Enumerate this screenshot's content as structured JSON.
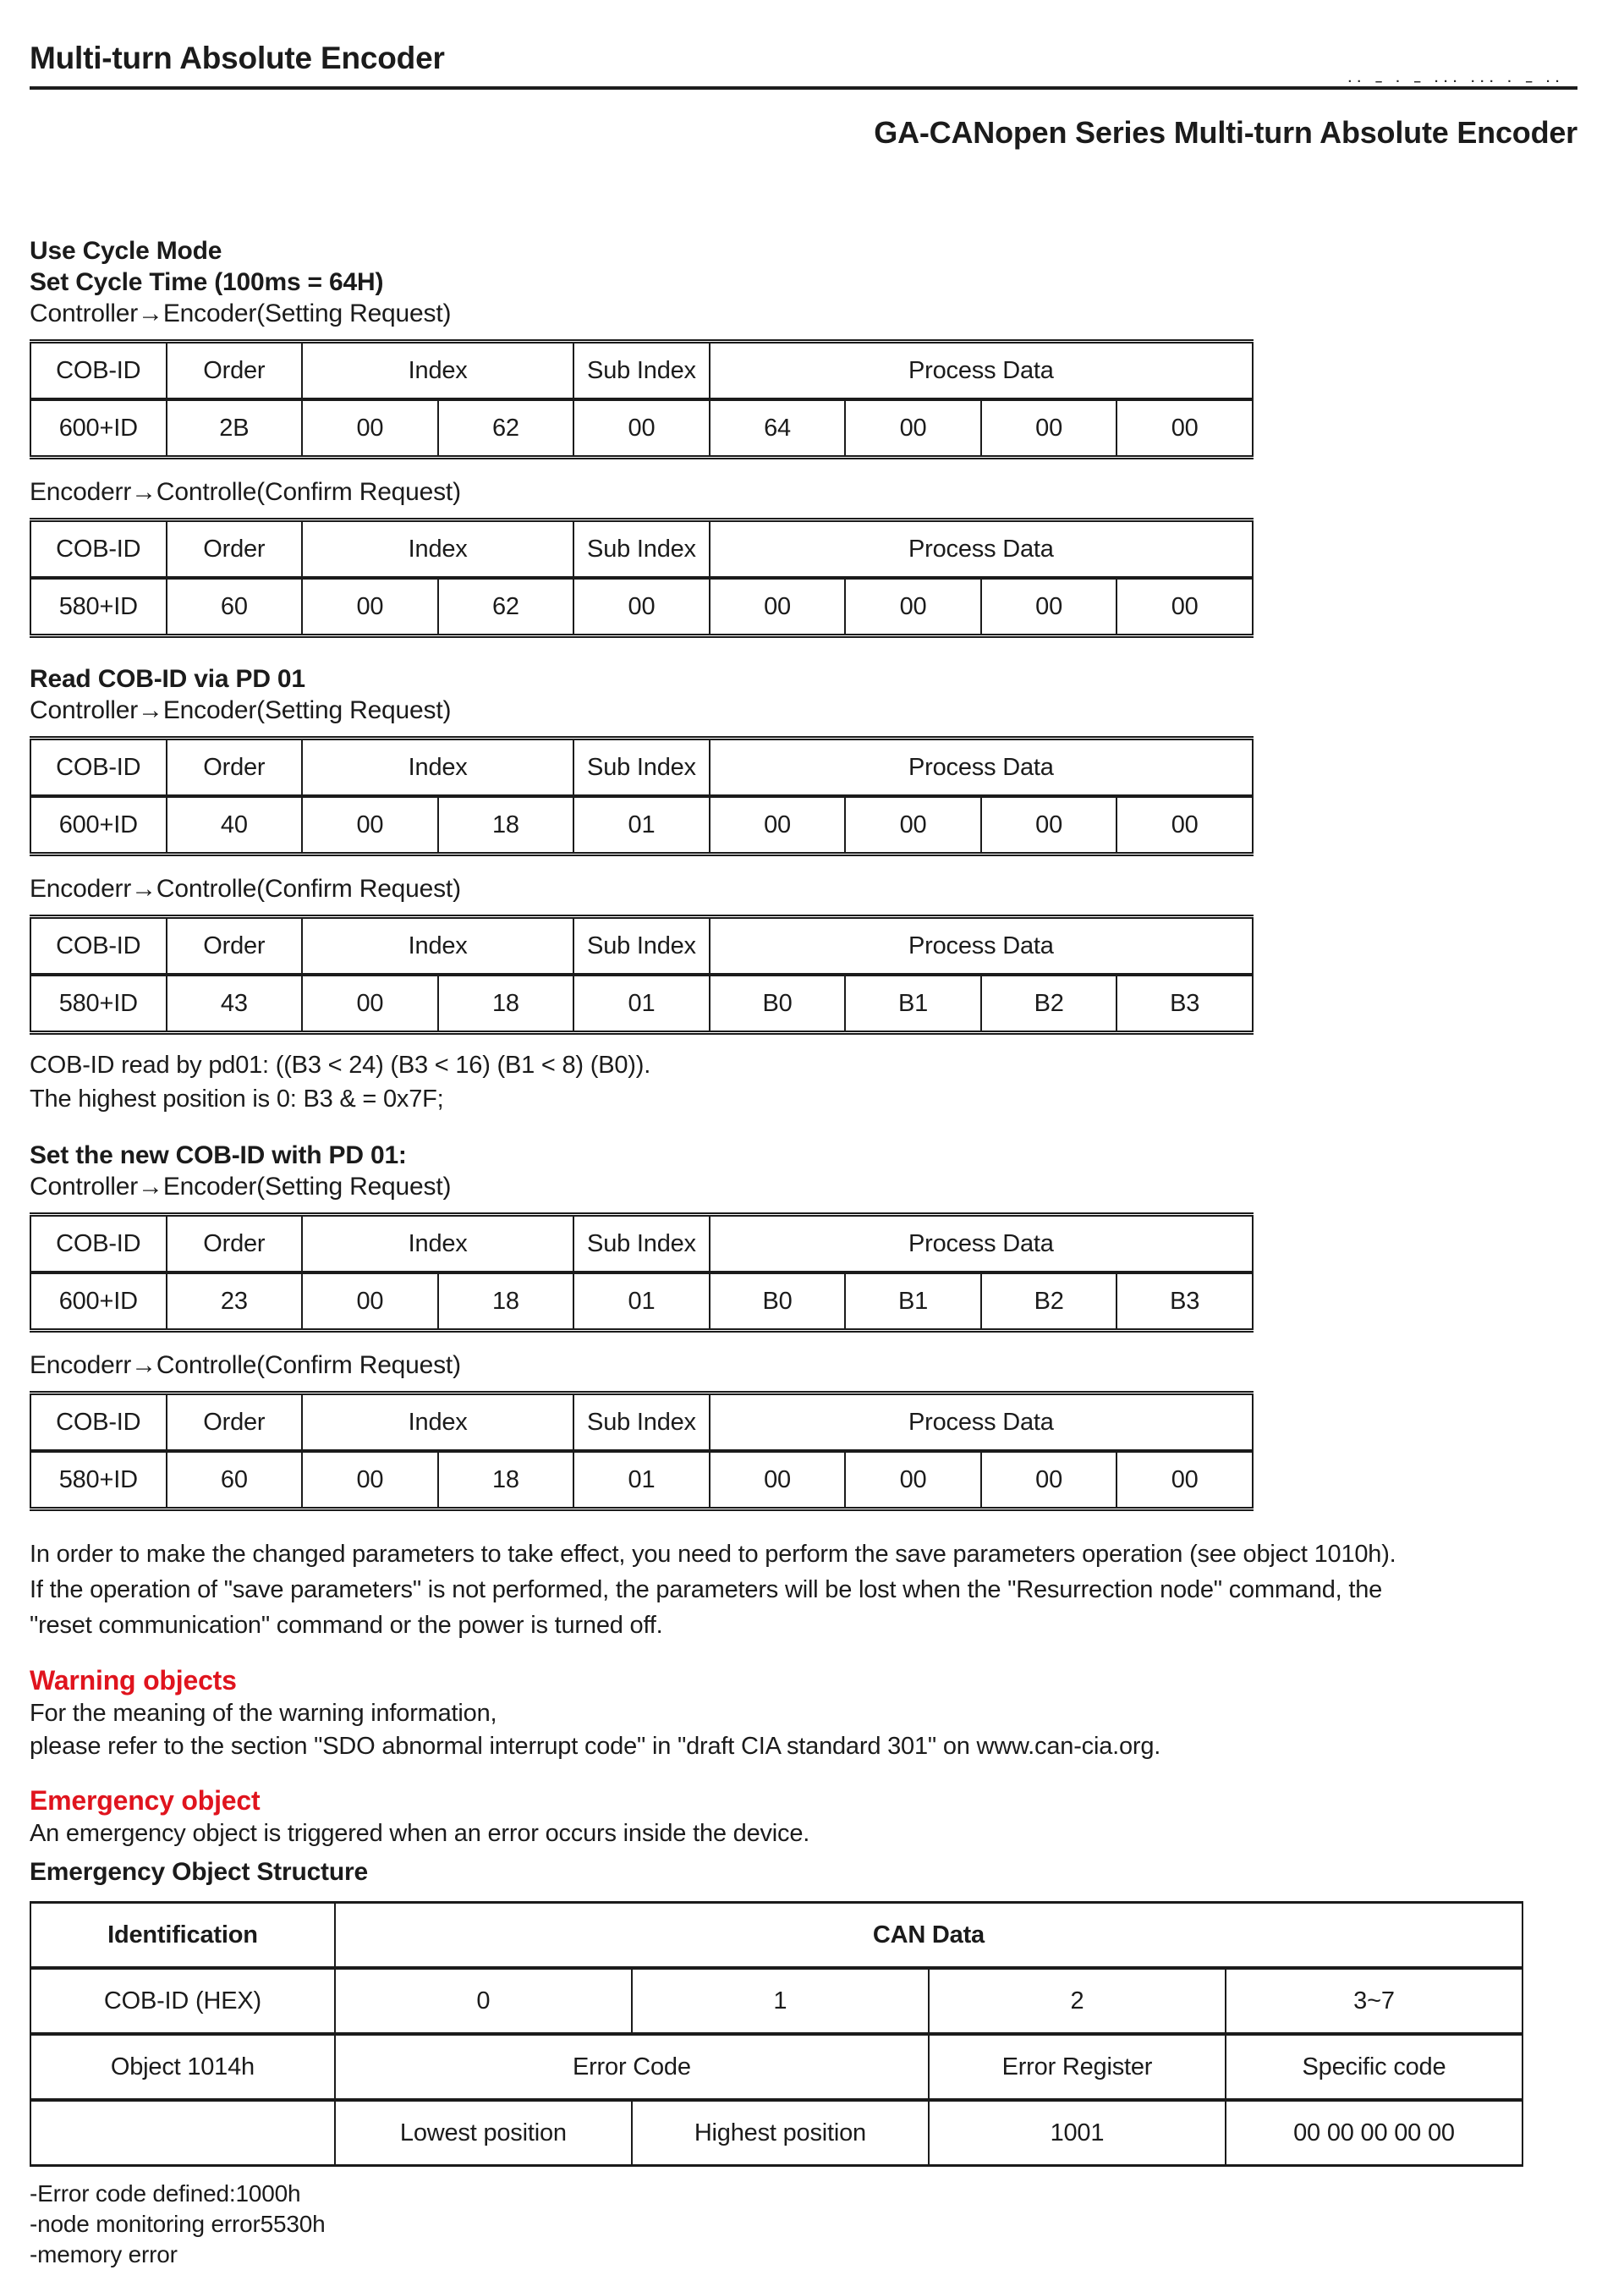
{
  "colors": {
    "heading_red": "#e0141e",
    "ink": "#1b1b1b"
  },
  "header": {
    "doc_title": "Multi-turn Absolute Encoder",
    "corner_marks": "·· – · – ··· ··· · – ··",
    "page_title": "GA-CANopen Series Multi-turn Absolute Encoder"
  },
  "labels": {
    "controller_to_encoder": "Controller→Encoder(Setting Request)",
    "encoder_to_controller": "Encoderr→Controlle(Confirm Request)"
  },
  "sdo_headers": {
    "cob_id": "COB-ID",
    "order": "Order",
    "index": "Index",
    "sub_index": "Sub Index",
    "process_data": "Process Data"
  },
  "sections": {
    "use_cycle_mode": {
      "title_line1": "Use Cycle Mode",
      "title_line2": "Set Cycle Time (100ms = 64H)",
      "request_row": [
        "600+ID",
        "2B",
        "00",
        "62",
        "00",
        "64",
        "00",
        "00",
        "00"
      ],
      "confirm_row": [
        "580+ID",
        "60",
        "00",
        "62",
        "00",
        "00",
        "00",
        "00",
        "00"
      ]
    },
    "read_cob_id": {
      "title": "Read COB-ID via PD 01",
      "request_row": [
        "600+ID",
        "40",
        "00",
        "18",
        "01",
        "00",
        "00",
        "00",
        "00"
      ],
      "confirm_row": [
        "580+ID",
        "43",
        "00",
        "18",
        "01",
        "B0",
        "B1",
        "B2",
        "B3"
      ],
      "note_line1": "COB-ID read by pd01: ((B3 < 24) (B3 < 16) (B1 < 8) (B0)).",
      "note_line2": "The highest position is 0: B3 & = 0x7F;"
    },
    "set_new_cob_id": {
      "title": "Set the new COB-ID with PD 01:",
      "request_row": [
        "600+ID",
        "23",
        "00",
        "18",
        "01",
        "B0",
        "B1",
        "B2",
        "B3"
      ],
      "confirm_row": [
        "580+ID",
        "60",
        "00",
        "18",
        "01",
        "00",
        "00",
        "00",
        "00"
      ],
      "save_note_lines": [
        "In order to make the changed parameters to take effect, you need to perform the save parameters operation (see object 1010h).",
        "If the operation of \"save parameters\" is not performed, the parameters will be lost when the \"Resurrection node\" command, the",
        "\"reset communication\" command or the power is turned off."
      ]
    },
    "warning": {
      "title": "Warning objects",
      "lines": [
        "For the meaning of the warning information,",
        "please refer to the section \"SDO abnormal interrupt code\" in \"draft CIA standard 301\" on www.can-cia.org."
      ]
    },
    "emergency": {
      "title": "Emergency object",
      "intro": "An emergency object is triggered when an error occurs inside the device.",
      "structure_title": "Emergency Object Structure",
      "table": {
        "identification": "Identification",
        "can_data": "CAN Data",
        "cob_id_label": "COB-ID (HEX)",
        "byte_labels": [
          "0",
          "1",
          "2",
          "3~7"
        ],
        "object_label": "Object 1014h",
        "error_code": "Error Code",
        "error_register": "Error Register",
        "specific_code": "Specific code",
        "lowest": "Lowest position",
        "highest": "Highest position",
        "register_value": "1001",
        "specific_value": "00 00 00 00 00"
      },
      "footnotes": [
        "-Error code defined:1000h",
        "-node monitoring error5530h",
        "-memory error"
      ]
    }
  }
}
